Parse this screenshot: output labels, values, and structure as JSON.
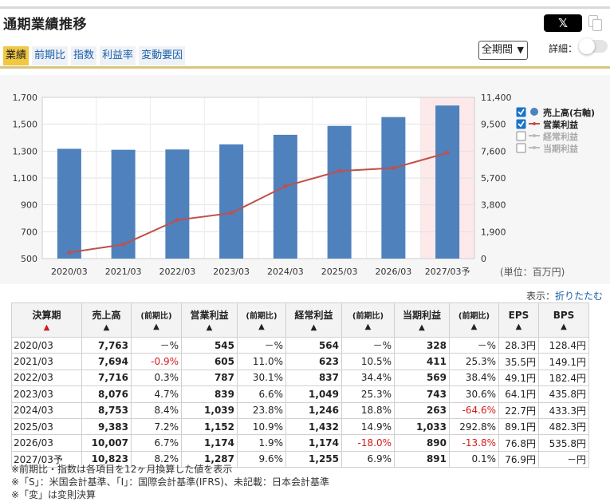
{
  "header": {
    "title": "通期業績推移",
    "share_label": "𝕏",
    "tabs": [
      {
        "label": "業績",
        "active": true
      },
      {
        "label": "前期比",
        "active": false
      },
      {
        "label": "指数",
        "active": false
      },
      {
        "label": "利益率",
        "active": false
      },
      {
        "label": "変動要因",
        "active": false
      }
    ],
    "period_select": "全期間",
    "detail_label": "詳細："
  },
  "chart_data": {
    "type": "bar",
    "categories": [
      "2020/03",
      "2021/03",
      "2022/03",
      "2023/03",
      "2024/03",
      "2025/03",
      "2026/03",
      "2027/03予"
    ],
    "series": [
      {
        "name": "売上高(右軸)",
        "type": "bar",
        "axis": "right",
        "color": "#4f81bd",
        "values": [
          7763,
          7694,
          7716,
          8076,
          8753,
          9383,
          10007,
          10823
        ],
        "visible": true
      },
      {
        "name": "営業利益",
        "type": "line",
        "axis": "left",
        "color": "#c0504d",
        "values": [
          545,
          605,
          787,
          839,
          1039,
          1152,
          1174,
          1287
        ],
        "visible": true
      },
      {
        "name": "経常利益",
        "type": "line",
        "axis": "left",
        "values": [
          564,
          623,
          837,
          1049,
          1246,
          1432,
          1174,
          1255
        ],
        "visible": false
      },
      {
        "name": "当期利益",
        "type": "line",
        "axis": "left",
        "values": [
          328,
          411,
          569,
          743,
          263,
          1033,
          890,
          891
        ],
        "visible": false
      }
    ],
    "left_axis": {
      "ticks": [
        "1,700",
        "1,500",
        "1,300",
        "1,100",
        "900",
        "700",
        "500"
      ],
      "ylim": [
        500,
        1700
      ]
    },
    "right_axis": {
      "ticks": [
        "11,400",
        "9,500",
        "7,600",
        "5,700",
        "3,800",
        "1,900",
        "0"
      ],
      "ylim": [
        0,
        11400
      ]
    },
    "forecast_highlight": "2027/03予",
    "unit": "(単位：百万円)",
    "grid": true,
    "legend_position": "right"
  },
  "display_toggle": {
    "label": "表示：",
    "link": "折りたたむ"
  },
  "table": {
    "headers": [
      {
        "label": "決算期",
        "arrow": "▲"
      },
      {
        "label": "売上高",
        "arrow": "▲"
      },
      {
        "label": "(前期比)",
        "arrow": "▲"
      },
      {
        "label": "営業利益",
        "arrow": "▲"
      },
      {
        "label": "(前期比)",
        "arrow": "▲"
      },
      {
        "label": "経常利益",
        "arrow": "▲"
      },
      {
        "label": "(前期比)",
        "arrow": "▲"
      },
      {
        "label": "当期利益",
        "arrow": "▲"
      },
      {
        "label": "(前期比)",
        "arrow": "▲"
      },
      {
        "label": "EPS",
        "arrow": "▲"
      },
      {
        "label": "BPS",
        "arrow": "▲"
      }
    ],
    "rows": [
      [
        "2020/03",
        "7,763",
        "－%",
        "545",
        "－%",
        "564",
        "－%",
        "328",
        "－%",
        "28.3円",
        "128.4円"
      ],
      [
        "2021/03",
        "7,694",
        "-0.9%",
        "605",
        "11.0%",
        "623",
        "10.5%",
        "411",
        "25.3%",
        "35.5円",
        "149.1円"
      ],
      [
        "2022/03",
        "7,716",
        "0.3%",
        "787",
        "30.1%",
        "837",
        "34.4%",
        "569",
        "38.4%",
        "49.1円",
        "182.4円"
      ],
      [
        "2023/03",
        "8,076",
        "4.7%",
        "839",
        "6.6%",
        "1,049",
        "25.3%",
        "743",
        "30.6%",
        "64.1円",
        "435.8円"
      ],
      [
        "2024/03",
        "8,753",
        "8.4%",
        "1,039",
        "23.8%",
        "1,246",
        "18.8%",
        "263",
        "-64.6%",
        "22.7円",
        "433.3円"
      ],
      [
        "2025/03",
        "9,383",
        "7.2%",
        "1,152",
        "10.9%",
        "1,432",
        "14.9%",
        "1,033",
        "292.8%",
        "89.1円",
        "482.3円"
      ],
      [
        "2026/03",
        "10,007",
        "6.7%",
        "1,174",
        "1.9%",
        "1,174",
        "-18.0%",
        "890",
        "-13.8%",
        "76.8円",
        "535.8円"
      ],
      [
        "2027/03予",
        "10,823",
        "8.2%",
        "1,287",
        "9.6%",
        "1,255",
        "6.9%",
        "891",
        "0.1%",
        "76.9円",
        "－円"
      ]
    ]
  },
  "notes": [
    "※前期比・指数は各項目を12ヶ月換算した値を表示",
    "※「S」：米国会計基準、「I」：国際会計基準(IFRS)、未記載：日本会計基準",
    "※「変」は変則決算"
  ]
}
